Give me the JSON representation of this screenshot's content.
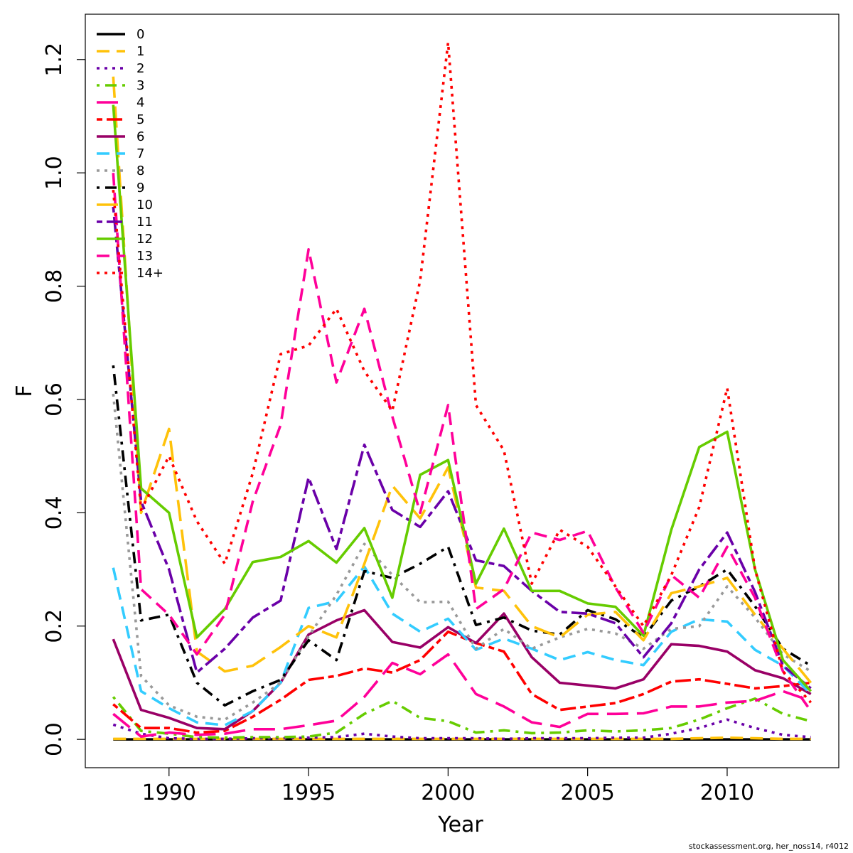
{
  "credit": "stockassessment.org, her_noss14, r4012",
  "chart_data": {
    "type": "line",
    "xlabel": "Year",
    "ylabel": "F",
    "xlim": [
      1987.0,
      2014.0
    ],
    "ylim": [
      -0.05,
      1.28
    ],
    "xticks": [
      "1990",
      "1995",
      "2000",
      "2005",
      "2010"
    ],
    "yticks": [
      "0.0",
      "0.2",
      "0.4",
      "0.6",
      "0.8",
      "1.0",
      "1.2"
    ],
    "legend_position": "top-left",
    "x": [
      1988,
      1989,
      1990,
      1991,
      1992,
      1993,
      1994,
      1995,
      1996,
      1997,
      1998,
      1999,
      2000,
      2001,
      2002,
      2003,
      2004,
      2005,
      2006,
      2007,
      2008,
      2009,
      2010,
      2011,
      2012,
      2013
    ],
    "series": [
      {
        "name": "0",
        "color": "#000000",
        "dash": "solid",
        "values": [
          0,
          0,
          0,
          0,
          0,
          0,
          0,
          0,
          0,
          0,
          0,
          0,
          0,
          0,
          0,
          0,
          0,
          0,
          0,
          0,
          0,
          0,
          0,
          0,
          0,
          0
        ]
      },
      {
        "name": "1",
        "color": "#FFC20A",
        "dash": "dashed",
        "values": [
          0.001,
          0.001,
          0.001,
          0.001,
          0.001,
          0.001,
          0.001,
          0.001,
          0.001,
          0.001,
          0.001,
          0.001,
          0.001,
          0.001,
          0.001,
          0.001,
          0.001,
          0.001,
          0.001,
          0.001,
          0.001,
          0.002,
          0.003,
          0.002,
          0.001,
          0.001
        ]
      },
      {
        "name": "2",
        "color": "#6A00A8",
        "dash": "dotted",
        "values": [
          0.026,
          0.01,
          0.002,
          0.001,
          0.001,
          0.002,
          0.002,
          0.003,
          0.004,
          0.01,
          0.005,
          0.002,
          0.002,
          0.002,
          0.001,
          0.002,
          0.002,
          0.002,
          0.003,
          0.003,
          0.01,
          0.02,
          0.035,
          0.02,
          0.008,
          0.004
        ]
      },
      {
        "name": "3",
        "color": "#66CC00",
        "dash": "dashdot",
        "values": [
          0.075,
          0.015,
          0.01,
          0.004,
          0.003,
          0.004,
          0.004,
          0.005,
          0.012,
          0.045,
          0.068,
          0.038,
          0.032,
          0.012,
          0.016,
          0.011,
          0.012,
          0.016,
          0.014,
          0.016,
          0.02,
          0.035,
          0.055,
          0.072,
          0.045,
          0.032
        ]
      },
      {
        "name": "4",
        "color": "#FF0099",
        "dash": "longdash",
        "values": [
          0.045,
          0.005,
          0.012,
          0.008,
          0.01,
          0.018,
          0.018,
          0.025,
          0.033,
          0.075,
          0.135,
          0.115,
          0.15,
          0.08,
          0.058,
          0.03,
          0.022,
          0.045,
          0.045,
          0.046,
          0.058,
          0.058,
          0.065,
          0.068,
          0.085,
          0.068
        ]
      },
      {
        "name": "5",
        "color": "#FF0000",
        "dash": "twodash",
        "values": [
          0.062,
          0.02,
          0.02,
          0.012,
          0.015,
          0.04,
          0.07,
          0.105,
          0.112,
          0.125,
          0.118,
          0.14,
          0.19,
          0.17,
          0.155,
          0.08,
          0.052,
          0.058,
          0.064,
          0.08,
          0.102,
          0.106,
          0.098,
          0.09,
          0.094,
          0.1
        ]
      },
      {
        "name": "6",
        "color": "#990066",
        "dash": "solid",
        "values": [
          0.177,
          0.052,
          0.038,
          0.02,
          0.018,
          0.05,
          0.1,
          0.185,
          0.21,
          0.228,
          0.172,
          0.162,
          0.198,
          0.17,
          0.222,
          0.145,
          0.1,
          0.095,
          0.09,
          0.106,
          0.168,
          0.165,
          0.155,
          0.122,
          0.108,
          0.08
        ]
      },
      {
        "name": "7",
        "color": "#33CCFF",
        "dash": "dashed",
        "values": [
          0.303,
          0.085,
          0.055,
          0.03,
          0.025,
          0.05,
          0.1,
          0.232,
          0.244,
          0.305,
          0.222,
          0.19,
          0.213,
          0.158,
          0.178,
          0.16,
          0.14,
          0.154,
          0.14,
          0.131,
          0.19,
          0.212,
          0.208,
          0.158,
          0.13,
          0.08
        ]
      },
      {
        "name": "8",
        "color": "#999999",
        "dash": "dotted",
        "values": [
          0.61,
          0.112,
          0.06,
          0.04,
          0.035,
          0.065,
          0.1,
          0.182,
          0.255,
          0.345,
          0.29,
          0.242,
          0.243,
          0.16,
          0.195,
          0.16,
          0.18,
          0.195,
          0.187,
          0.16,
          0.195,
          0.2,
          0.27,
          0.215,
          0.15,
          0.12
        ]
      },
      {
        "name": "9",
        "color": "#000000",
        "dash": "dashdot",
        "values": [
          0.66,
          0.21,
          0.22,
          0.1,
          0.06,
          0.085,
          0.105,
          0.175,
          0.14,
          0.297,
          0.285,
          0.31,
          0.34,
          0.202,
          0.215,
          0.192,
          0.185,
          0.228,
          0.212,
          0.18,
          0.245,
          0.27,
          0.3,
          0.235,
          0.16,
          0.13
        ]
      },
      {
        "name": "10",
        "color": "#FFC20A",
        "dash": "longdash",
        "values": [
          1.17,
          0.4,
          0.548,
          0.155,
          0.12,
          0.13,
          0.163,
          0.2,
          0.18,
          0.31,
          0.448,
          0.39,
          0.48,
          0.268,
          0.262,
          0.2,
          0.18,
          0.22,
          0.225,
          0.175,
          0.258,
          0.27,
          0.285,
          0.22,
          0.16,
          0.1
        ]
      },
      {
        "name": "11",
        "color": "#6A00A8",
        "dash": "twodash",
        "values": [
          0.94,
          0.42,
          0.3,
          0.118,
          0.16,
          0.215,
          0.245,
          0.462,
          0.336,
          0.52,
          0.405,
          0.375,
          0.438,
          0.316,
          0.306,
          0.262,
          0.225,
          0.222,
          0.205,
          0.145,
          0.205,
          0.3,
          0.365,
          0.26,
          0.13,
          0.09
        ]
      },
      {
        "name": "12",
        "color": "#66CC00",
        "dash": "solid",
        "values": [
          1.12,
          0.443,
          0.4,
          0.18,
          0.23,
          0.313,
          0.322,
          0.35,
          0.312,
          0.373,
          0.25,
          0.467,
          0.493,
          0.275,
          0.372,
          0.262,
          0.262,
          0.24,
          0.234,
          0.183,
          0.37,
          0.516,
          0.543,
          0.3,
          0.14,
          0.085
        ]
      },
      {
        "name": "13",
        "color": "#FF0099",
        "dash": "dashed",
        "values": [
          1.0,
          0.265,
          0.22,
          0.15,
          0.22,
          0.42,
          0.555,
          0.865,
          0.63,
          0.76,
          0.57,
          0.4,
          0.59,
          0.23,
          0.265,
          0.365,
          0.352,
          0.368,
          0.268,
          0.188,
          0.29,
          0.25,
          0.34,
          0.25,
          0.12,
          0.05
        ]
      },
      {
        "name": "14+",
        "color": "#FF0000",
        "dash": "dotted",
        "values": [
          0.97,
          0.405,
          0.5,
          0.385,
          0.31,
          0.47,
          0.68,
          0.695,
          0.76,
          0.65,
          0.58,
          0.81,
          1.23,
          0.59,
          0.51,
          0.275,
          0.37,
          0.34,
          0.27,
          0.2,
          0.29,
          0.41,
          0.62,
          0.3,
          0.12,
          0.065
        ]
      }
    ]
  }
}
